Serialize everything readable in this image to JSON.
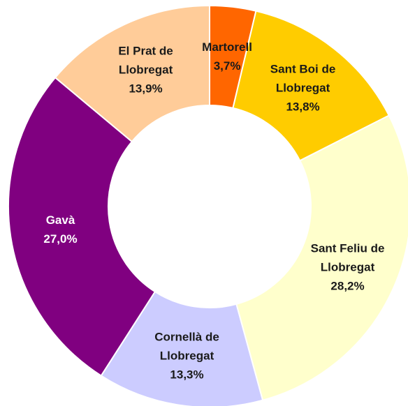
{
  "chart_data": {
    "type": "donut",
    "categories": [
      "Martorell",
      "Sant Boi de Llobregat",
      "Sant Feliu de Llobregat",
      "Cornellà de Llobregat",
      "Gavà",
      "El Prat de Llobregat"
    ],
    "values": [
      3.7,
      13.8,
      28.2,
      13.3,
      27.0,
      13.9
    ],
    "value_labels": [
      "3,7%",
      "13,8%",
      "28,2%",
      "13,3%",
      "27,0%",
      "13,9%"
    ],
    "colors": [
      "#ff6600",
      "#ffcc00",
      "#ffffcc",
      "#ccccff",
      "#800080",
      "#ffcc99"
    ],
    "label_colors": [
      "#1a1a1a",
      "#1a1a1a",
      "#1a1a1a",
      "#1a1a1a",
      "#ffffff",
      "#1a1a1a"
    ]
  }
}
